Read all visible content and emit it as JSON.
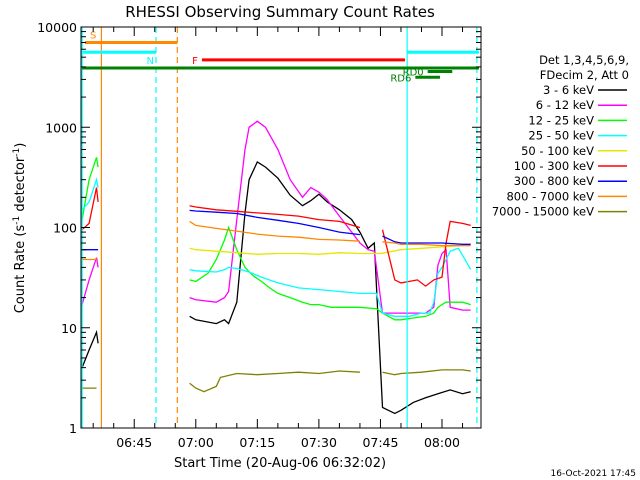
{
  "chart_data": {
    "type": "line",
    "title": "RHESSI Observing Summary Count Rates",
    "xlabel": "Start Time (20-Aug-06 06:32:02)",
    "ylabel_main": "Count Rate (s",
    "ylabel_sup1": "-1",
    "ylabel_mid": " detector",
    "ylabel_sup2": "-1",
    "ylabel_end": ")",
    "footer": "16-Oct-2021 17:45",
    "x_unit": "minutes of day",
    "xlim": [
      392.03,
      489.5
    ],
    "ylim": [
      1,
      10000
    ],
    "y_scale": "log",
    "x_ticks": [
      {
        "value": 405,
        "label": "06:45"
      },
      {
        "value": 420,
        "label": "07:00"
      },
      {
        "value": 435,
        "label": "07:15"
      },
      {
        "value": 450,
        "label": "07:30"
      },
      {
        "value": 465,
        "label": "07:45"
      },
      {
        "value": 480,
        "label": "08:00"
      }
    ],
    "y_ticks": [
      {
        "value": 1,
        "label": "1"
      },
      {
        "value": 10,
        "label": "10"
      },
      {
        "value": 100,
        "label": "100"
      },
      {
        "value": 1000,
        "label": "1000"
      },
      {
        "value": 10000,
        "label": "10000"
      }
    ],
    "legend": {
      "placement": "right",
      "header_line1": "Det 1,3,4,5,6,9,",
      "header_line2": "FDecim 2, Att 0"
    },
    "series": [
      {
        "name": "3 - 6 keV",
        "color": "#000000",
        "x": [
          392.3,
          394,
          395.8,
          396.2,
          418.5,
          420,
          425,
          427,
          428,
          430,
          432,
          433,
          435,
          437,
          440,
          443,
          446,
          448,
          450,
          452,
          455,
          458,
          460,
          462,
          463.5,
          465.5,
          468.5,
          470,
          473,
          476,
          479,
          482,
          485,
          487
        ],
        "y": [
          4,
          6,
          9,
          7,
          13,
          12,
          11,
          12,
          11,
          18,
          140,
          300,
          450,
          400,
          310,
          210,
          165,
          185,
          215,
          180,
          150,
          120,
          90,
          62,
          70,
          1.6,
          1.4,
          1.5,
          1.8,
          2.0,
          2.2,
          2.4,
          2.2,
          2.3
        ]
      },
      {
        "name": "6 - 12 keV",
        "color": "#ff00ff",
        "x": [
          392.3,
          394,
          395.8,
          396.2,
          418.5,
          420,
          425,
          427,
          428,
          430,
          432,
          433,
          435,
          437,
          440,
          443,
          446,
          448,
          450,
          452,
          455,
          458,
          460,
          462,
          463.5,
          465.5,
          468.5,
          470,
          473,
          476,
          478,
          479,
          480,
          481,
          482,
          485,
          487
        ],
        "y": [
          17,
          30,
          50,
          40,
          20,
          19,
          18,
          20,
          23,
          120,
          600,
          1000,
          1150,
          1000,
          600,
          300,
          200,
          250,
          225,
          190,
          130,
          90,
          70,
          60,
          58,
          14,
          14,
          14,
          14,
          14,
          16,
          42,
          55,
          60,
          16,
          15,
          15
        ]
      },
      {
        "name": "12 - 25 keV",
        "color": "#00ff00",
        "x": [
          392.3,
          394,
          395.8,
          396.2,
          418.5,
          420,
          423,
          425,
          427,
          428,
          430,
          432,
          434,
          436,
          438,
          440,
          443,
          446,
          448,
          450,
          453,
          456,
          460,
          464,
          465.5,
          468.5,
          470,
          473,
          476,
          478,
          479,
          480,
          481,
          482,
          485,
          487
        ],
        "y": [
          120,
          300,
          500,
          400,
          30,
          29,
          35,
          48,
          75,
          100,
          60,
          40,
          33,
          29,
          25,
          22,
          20,
          18,
          17,
          17,
          16,
          16,
          16,
          15.5,
          14,
          12,
          12,
          12.5,
          13,
          14,
          16,
          17,
          18,
          18,
          18,
          17
        ]
      },
      {
        "name": "25 - 50 keV",
        "color": "#00ffff",
        "x": [
          392.3,
          394,
          395.8,
          396.2,
          418.5,
          420,
          425,
          427,
          428,
          430,
          433,
          436,
          440,
          445,
          450,
          455,
          460,
          464,
          465.5,
          468.5,
          472,
          475,
          477,
          478,
          479,
          480,
          481,
          482,
          484,
          486,
          487
        ],
        "y": [
          150,
          180,
          300,
          250,
          38,
          37,
          36,
          38,
          40,
          39,
          36,
          32,
          28,
          25,
          24,
          23,
          22,
          22,
          14,
          13,
          13,
          14,
          14,
          18,
          35,
          40,
          48,
          58,
          62,
          45,
          38
        ]
      },
      {
        "name": "50 - 100 keV",
        "color": "#e6e600",
        "x": [
          418.5,
          420,
          425,
          430,
          435,
          440,
          445,
          450,
          455,
          460,
          465,
          470,
          475,
          480,
          485,
          487
        ],
        "y": [
          62,
          60,
          58,
          56,
          54,
          55,
          55,
          54,
          56,
          55,
          55,
          60,
          62,
          64,
          66,
          66
        ]
      },
      {
        "name": "100 - 300 keV",
        "color": "#ff0000",
        "x": [
          392.3,
          394,
          395.8,
          396.2,
          418.5,
          420,
          425,
          430,
          435,
          440,
          445,
          450,
          455,
          460,
          465.5,
          468.5,
          470,
          474,
          476,
          478,
          480,
          481,
          482,
          485,
          487
        ],
        "y": [
          95,
          110,
          250,
          180,
          165,
          160,
          150,
          145,
          140,
          135,
          130,
          120,
          115,
          100,
          95,
          30,
          28,
          30,
          26,
          30,
          32,
          70,
          115,
          110,
          105
        ]
      },
      {
        "name": "300 - 800 keV",
        "color": "#0000ff",
        "x": [
          392.3,
          394,
          395.8,
          396.2,
          418.5,
          420,
          425,
          430,
          435,
          440,
          445,
          450,
          455,
          460,
          465.5,
          468.5,
          470,
          475,
          480,
          485,
          487
        ],
        "y": [
          60,
          60,
          60,
          60,
          148,
          146,
          142,
          138,
          126,
          118,
          110,
          100,
          90,
          85,
          82,
          72,
          70,
          70,
          70,
          68,
          68
        ]
      },
      {
        "name": "800 - 7000 keV",
        "color": "#ff8800",
        "x": [
          392.3,
          394,
          395.8,
          396.2,
          418.5,
          420,
          425,
          430,
          435,
          440,
          445,
          450,
          455,
          460,
          465.5,
          468.5,
          470,
          475,
          480,
          485,
          487
        ],
        "y": [
          48,
          48,
          48,
          48,
          115,
          105,
          98,
          92,
          86,
          82,
          80,
          76,
          75,
          73,
          72,
          70,
          68,
          68,
          66,
          66,
          66
        ]
      },
      {
        "name": "7000 - 15000 keV",
        "color": "#808000",
        "x": [
          392.3,
          395.8,
          418.5,
          420,
          422,
          425,
          426,
          430,
          435,
          440,
          445,
          450,
          455,
          460,
          465.5,
          468.5,
          470,
          475,
          480,
          485,
          487
        ],
        "y": [
          2.5,
          2.5,
          2.8,
          2.5,
          2.3,
          2.6,
          3.2,
          3.5,
          3.4,
          3.5,
          3.6,
          3.5,
          3.7,
          3.6,
          3.6,
          3.4,
          3.5,
          3.6,
          3.8,
          3.8,
          3.7
        ]
      }
    ],
    "attenuator_bar": {
      "label": "S",
      "color": "#ff8800",
      "x_start": 393,
      "x_end": 415.5,
      "y": 7000
    },
    "night_bars": [
      {
        "label": "N",
        "color": "#00ffff",
        "x_start": 392.5,
        "x_end": 410.3,
        "y": 5600
      },
      {
        "label": "",
        "color": "#00ffff",
        "x_start": 471.5,
        "x_end": 489,
        "y": 5600
      }
    ],
    "flare_bar": {
      "label": "F",
      "color": "#ff0000",
      "x_start": 421.5,
      "x_end": 471,
      "y": 4700
    },
    "green_bar": {
      "label": "",
      "color": "#008000",
      "x_start": 392.3,
      "x_end": 489.0,
      "y": 3900
    },
    "rd_flags": [
      {
        "label": "RD0",
        "color": "#008000",
        "x_start": 476.5,
        "x_end": 482.5,
        "y": 3600
      },
      {
        "label": "RD6",
        "color": "#008000",
        "x_start": 473.5,
        "x_end": 479.5,
        "y": 3150
      }
    ],
    "vertical_markers": [
      {
        "x": 392.3,
        "color": "#00ffff",
        "dashed": false
      },
      {
        "x": 397.0,
        "color": "#ff8800",
        "dashed": false
      },
      {
        "x": 410.3,
        "color": "#00ffff",
        "dashed": true
      },
      {
        "x": 415.5,
        "color": "#ff8800",
        "dashed": true
      },
      {
        "x": 471.5,
        "color": "#00ffff",
        "dashed": false
      },
      {
        "x": 488.5,
        "color": "#00ffff",
        "dashed": true
      }
    ]
  }
}
